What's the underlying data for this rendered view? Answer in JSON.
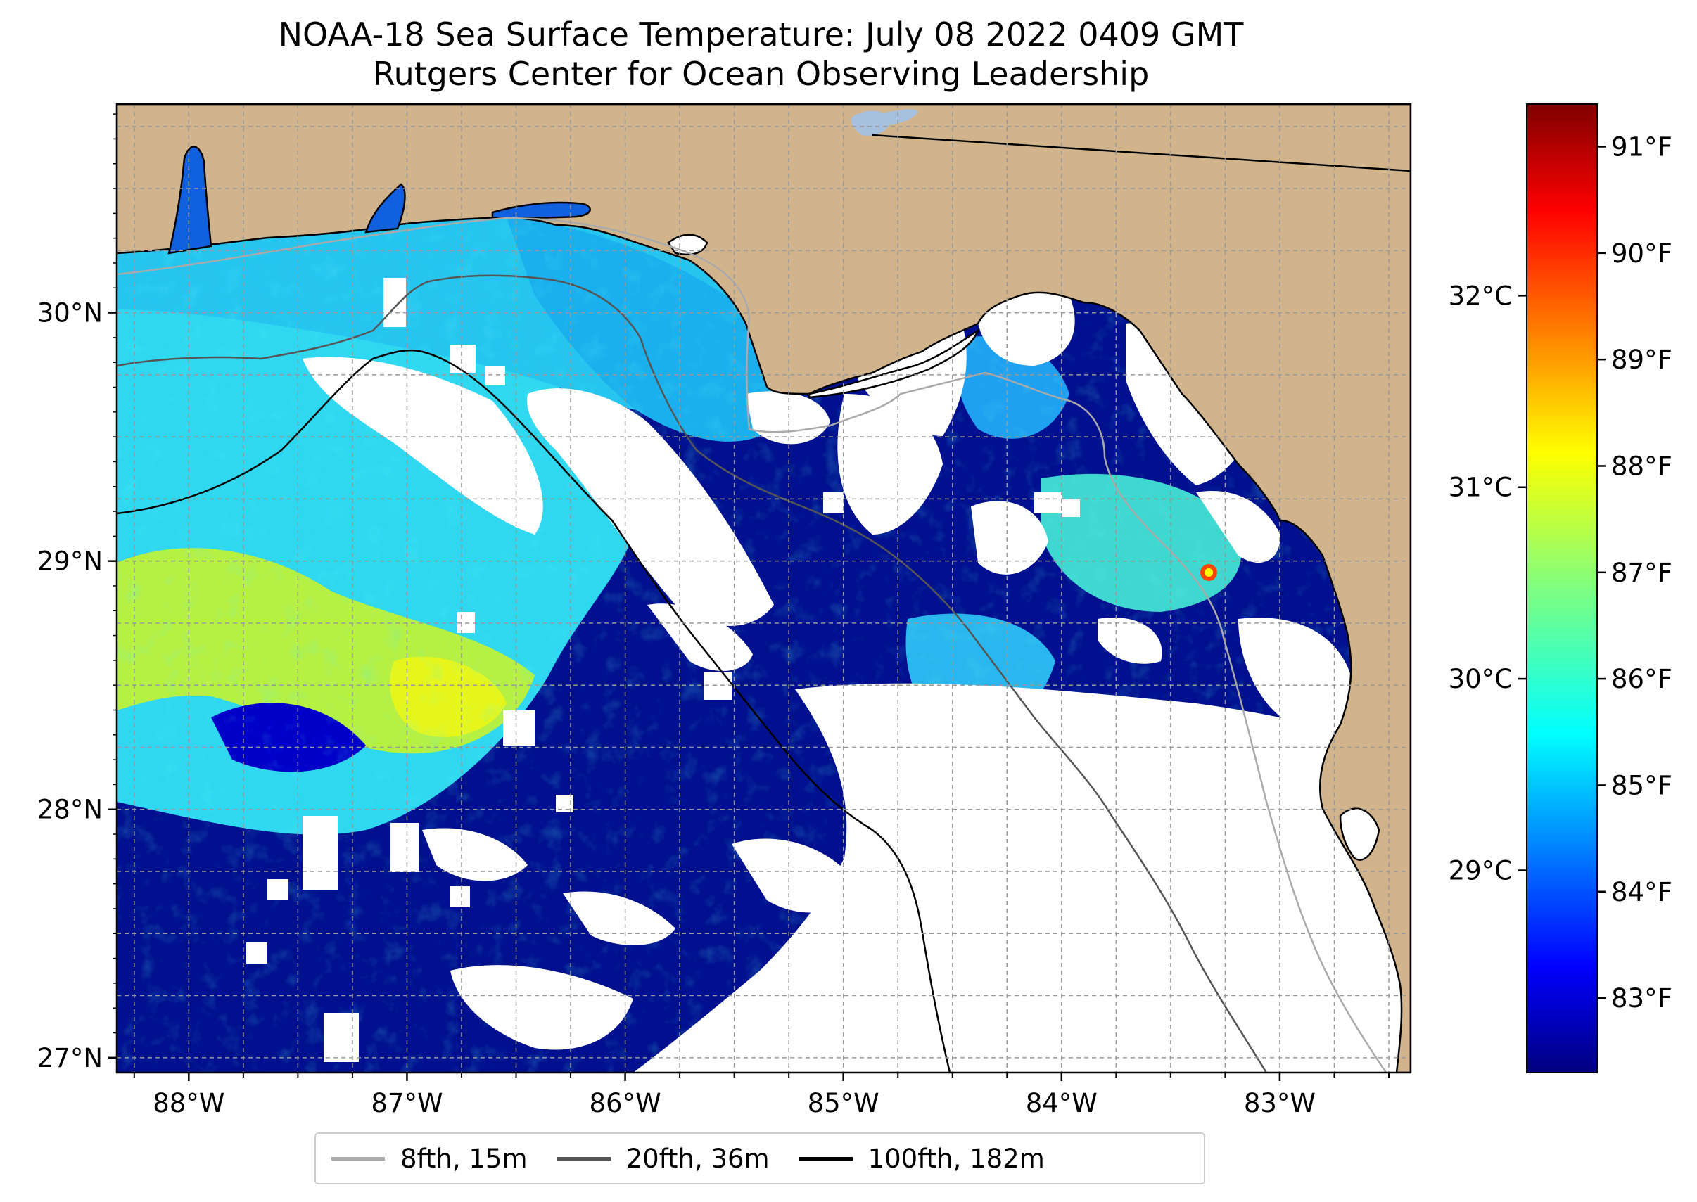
{
  "title": {
    "line1": "NOAA-18 Sea Surface Temperature: July 08 2022 0409 GMT",
    "line2": "Rutgers Center for Ocean Observing Leadership"
  },
  "map": {
    "lon_range": [
      -88.33,
      -82.4
    ],
    "lat_range": [
      26.94,
      30.84
    ],
    "x_ticks": [
      {
        "value": -88,
        "label": "88°W"
      },
      {
        "value": -87,
        "label": "87°W"
      },
      {
        "value": -86,
        "label": "86°W"
      },
      {
        "value": -85,
        "label": "85°W"
      },
      {
        "value": -84,
        "label": "84°W"
      },
      {
        "value": -83,
        "label": "83°W"
      }
    ],
    "y_ticks": [
      {
        "value": 27,
        "label": "27°N"
      },
      {
        "value": 28,
        "label": "28°N"
      },
      {
        "value": 29,
        "label": "29°N"
      },
      {
        "value": 30,
        "label": "30°N"
      }
    ],
    "grid": true,
    "colors": {
      "land": "#d2b48c",
      "no_data": "#ffffff",
      "water_body": "#a6c0e0"
    }
  },
  "colorbar": {
    "colormap": "jet",
    "f_range": [
      82.3,
      91.4
    ],
    "f_ticks": [
      {
        "value": 83,
        "label": "83°F"
      },
      {
        "value": 84,
        "label": "84°F"
      },
      {
        "value": 85,
        "label": "85°F"
      },
      {
        "value": 86,
        "label": "86°F"
      },
      {
        "value": 87,
        "label": "87°F"
      },
      {
        "value": 88,
        "label": "88°F"
      },
      {
        "value": 89,
        "label": "89°F"
      },
      {
        "value": 90,
        "label": "90°F"
      },
      {
        "value": 91,
        "label": "91°F"
      }
    ],
    "c_ticks": [
      {
        "value": 29,
        "label": "29°C"
      },
      {
        "value": 30,
        "label": "30°C"
      },
      {
        "value": 31,
        "label": "31°C"
      },
      {
        "value": 32,
        "label": "32°C"
      }
    ]
  },
  "legend": {
    "items": [
      {
        "label": "8fth, 15m",
        "color": "#aaaaaa"
      },
      {
        "label": "20fth, 36m",
        "color": "#555555"
      },
      {
        "label": "100fth, 182m",
        "color": "#000000"
      }
    ]
  }
}
